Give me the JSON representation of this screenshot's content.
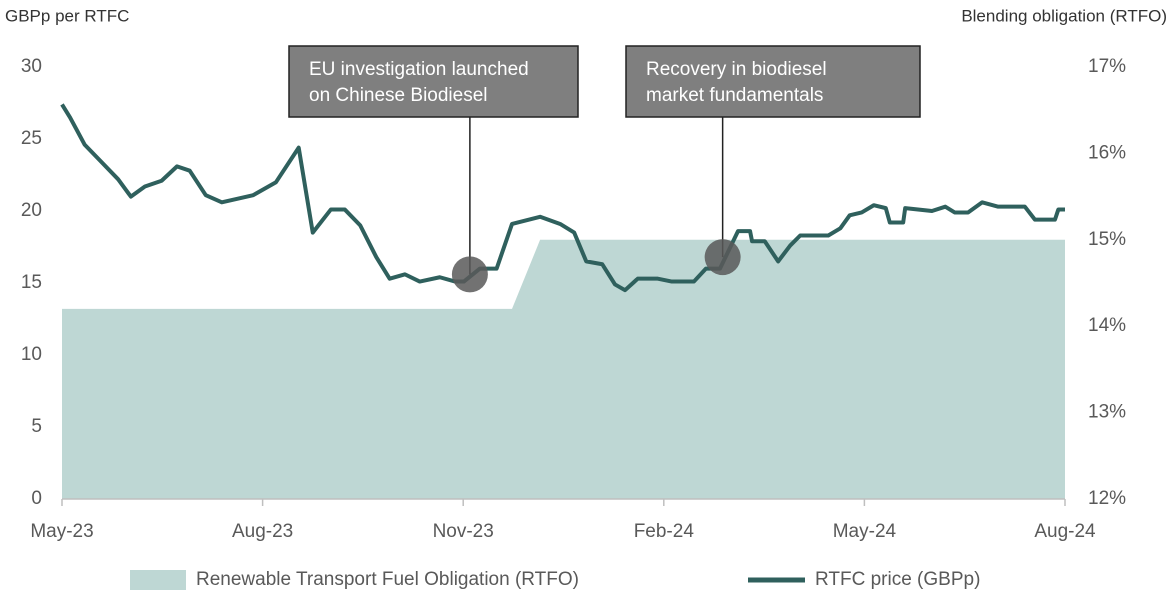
{
  "chart_data": {
    "type": "line",
    "ylabel": "GBPp per RTFC",
    "y2label": "Blending obligation (RTFO)",
    "xlim": [
      0,
      15
    ],
    "xticks": [
      {
        "value": 0,
        "label": "May-23"
      },
      {
        "value": 3,
        "label": "Aug-23"
      },
      {
        "value": 6,
        "label": "Nov-23"
      },
      {
        "value": 9,
        "label": "Feb-24"
      },
      {
        "value": 12,
        "label": "May-24"
      },
      {
        "value": 15,
        "label": "Aug-24"
      }
    ],
    "ylim": [
      0,
      30
    ],
    "yticks": [
      0,
      5,
      10,
      15,
      20,
      25,
      30
    ],
    "y2lim": [
      12,
      17
    ],
    "y2ticks": [
      {
        "value": 12,
        "label": "12%"
      },
      {
        "value": 13,
        "label": "13%"
      },
      {
        "value": 14,
        "label": "14%"
      },
      {
        "value": 15,
        "label": "15%"
      },
      {
        "value": 16,
        "label": "16%"
      },
      {
        "value": 17,
        "label": "17%"
      }
    ],
    "grid": false,
    "series": [
      {
        "name": "Renewable Transport Fuel Obligation (RTFO)",
        "type": "area",
        "axis": "y2",
        "color": "#bed7d4",
        "x": [
          0,
          6.73,
          7.15,
          15
        ],
        "values": [
          14.2,
          14.2,
          15.0,
          15.0
        ]
      },
      {
        "name": "RTFC price (GBPp)",
        "type": "line",
        "color": "#2f605d",
        "x": [
          0,
          0.12,
          0.34,
          0.57,
          0.84,
          1.03,
          1.24,
          1.49,
          1.72,
          1.91,
          2.15,
          2.39,
          2.86,
          3.2,
          3.54,
          3.75,
          4.02,
          4.23,
          4.46,
          4.7,
          4.9,
          5.13,
          5.35,
          5.65,
          5.88,
          6.01,
          6.25,
          6.5,
          6.73,
          7.15,
          7.45,
          7.66,
          7.84,
          8.08,
          8.27,
          8.42,
          8.61,
          8.91,
          9.12,
          9.45,
          9.63,
          9.84,
          10.11,
          10.29,
          10.32,
          10.51,
          10.71,
          10.89,
          11.04,
          11.46,
          11.64,
          11.78,
          11.96,
          12.14,
          12.32,
          12.38,
          12.58,
          12.61,
          13.01,
          13.21,
          13.35,
          13.55,
          13.76,
          14.0,
          14.4,
          14.55,
          14.85,
          14.9,
          15.0
        ],
        "values": [
          27.4,
          26.5,
          24.6,
          23.5,
          22.2,
          21.0,
          21.7,
          22.1,
          23.1,
          22.8,
          21.1,
          20.6,
          21.1,
          22.0,
          24.4,
          18.5,
          20.1,
          20.1,
          19.0,
          16.8,
          15.3,
          15.6,
          15.1,
          15.4,
          15.1,
          15.1,
          16.0,
          16.0,
          19.1,
          19.6,
          19.1,
          18.5,
          16.5,
          16.3,
          14.9,
          14.5,
          15.3,
          15.3,
          15.1,
          15.1,
          16.0,
          16.0,
          18.6,
          18.6,
          17.9,
          17.9,
          16.5,
          17.6,
          18.3,
          18.3,
          18.8,
          19.7,
          19.9,
          20.4,
          20.2,
          19.2,
          19.2,
          20.2,
          20.0,
          20.3,
          19.9,
          19.9,
          20.6,
          20.3,
          20.3,
          19.4,
          19.4,
          20.1,
          20.1
        ]
      }
    ],
    "annotations": [
      {
        "text": [
          "EU investigation launched",
          "on Chinese Biodiesel"
        ],
        "x": 6.1,
        "y": 15.6
      },
      {
        "text": [
          "Recovery in biodiesel",
          "market fundamentals"
        ],
        "x": 9.88,
        "y": 16.8
      }
    ]
  }
}
